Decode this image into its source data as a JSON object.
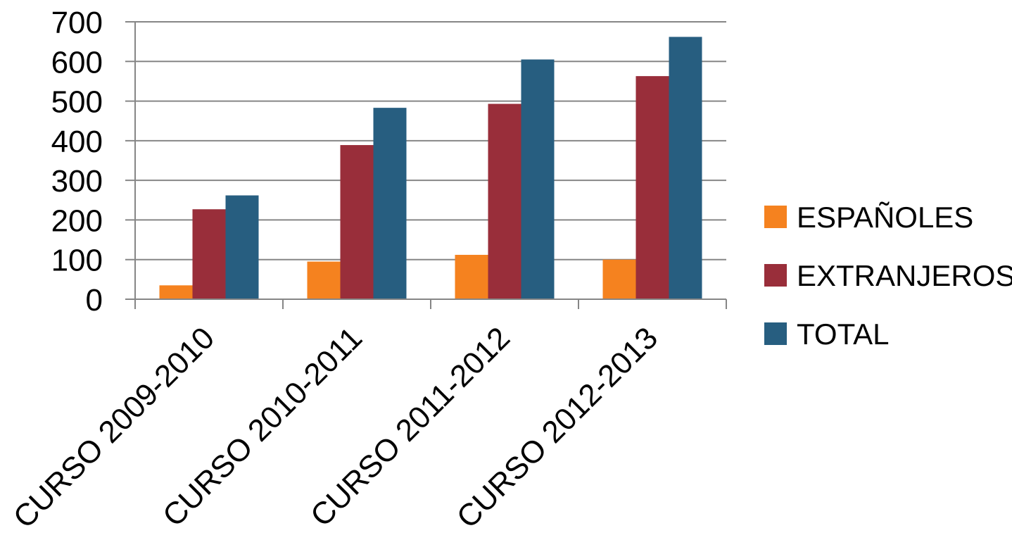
{
  "chart_data": {
    "type": "bar",
    "title": "",
    "xlabel": "",
    "ylabel": "",
    "ylim": [
      0,
      700
    ],
    "yticks": [
      0,
      100,
      200,
      300,
      400,
      500,
      600,
      700
    ],
    "grid": true,
    "legend_position": "right",
    "categories": [
      "CURSO 2009-2010",
      "CURSO 2010-2011",
      "CURSO 2011-2012",
      "CURSO 2012-2013"
    ],
    "series": [
      {
        "name": "ESPAÑOLES",
        "color": "#F5821F",
        "values": [
          35,
          95,
          112,
          100
        ]
      },
      {
        "name": "EXTRANJEROS",
        "color": "#992E3A",
        "values": [
          227,
          389,
          493,
          563
        ]
      },
      {
        "name": "TOTAL",
        "color": "#275E80",
        "values": [
          262,
          483,
          605,
          662
        ]
      }
    ]
  }
}
